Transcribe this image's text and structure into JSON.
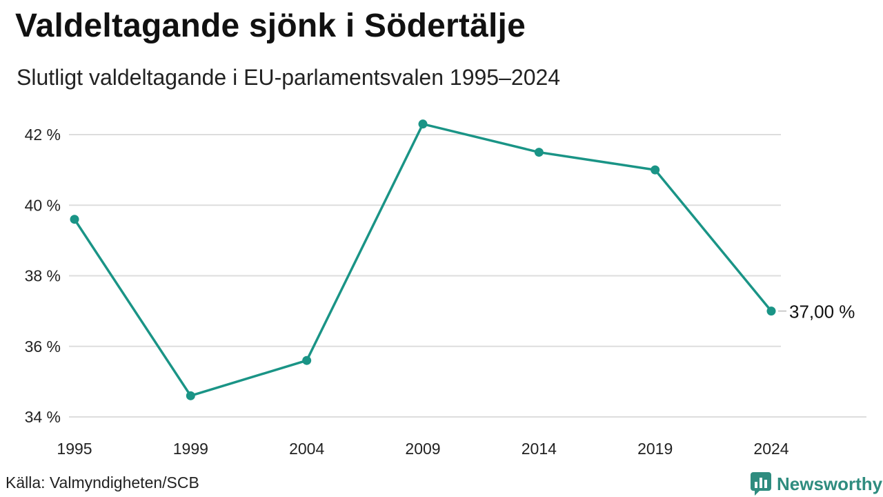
{
  "header": {
    "title": "Valdeltagande sjönk i Södertälje",
    "subtitle": "Slutligt valdeltagande i EU-parlamentsvalen 1995–2024"
  },
  "footer": {
    "source": "Källa: Valmyndigheten/SCB",
    "brand": "Newsworthy",
    "brand_icon": "bar-chart-speech-bubble-icon"
  },
  "colors": {
    "line": "#1a9486",
    "grid": "#dddddd",
    "brand": "#2f8c7f"
  },
  "chart_data": {
    "type": "line",
    "x": [
      "1995",
      "1999",
      "2004",
      "2009",
      "2014",
      "2019",
      "2024"
    ],
    "series": [
      {
        "values": [
          39.6,
          34.6,
          35.6,
          42.3,
          41.5,
          41.0,
          37.0
        ]
      }
    ],
    "ylim": [
      34,
      42
    ],
    "yticks": [
      34,
      36,
      38,
      40,
      42
    ],
    "ytick_labels": [
      "34 %",
      "36 %",
      "38 %",
      "40 %",
      "42 %"
    ],
    "end_label": "37,00 %",
    "grid": true,
    "legend": "none"
  }
}
